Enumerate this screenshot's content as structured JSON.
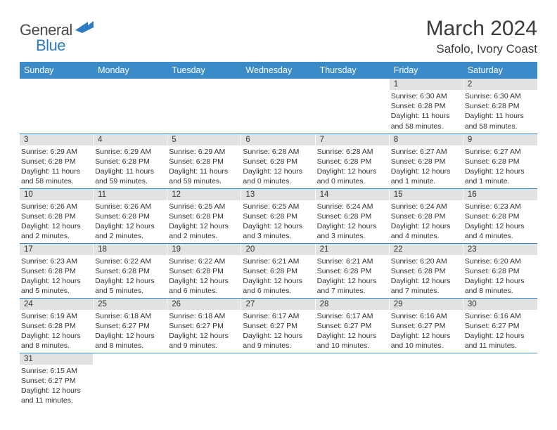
{
  "logo": {
    "general": "General",
    "blue": "Blue"
  },
  "title": "March 2024",
  "location": "Safolo, Ivory Coast",
  "colors": {
    "header_bg": "#3b8bc9",
    "header_fg": "#ffffff",
    "daynum_bg": "#e2e2e2",
    "row_border": "#3b8bc9",
    "logo_blue": "#2d7cc4",
    "logo_gray": "#4a4a4a"
  },
  "weekdays": [
    "Sunday",
    "Monday",
    "Tuesday",
    "Wednesday",
    "Thursday",
    "Friday",
    "Saturday"
  ],
  "font": {
    "body_family": "Arial",
    "th_size": 12.5,
    "daynum_size": 11.5,
    "info_size": 10.5,
    "title_size": 30,
    "location_size": 17
  },
  "weeks": [
    [
      {
        "day": "",
        "sunrise": "",
        "sunset": "",
        "daylight": ""
      },
      {
        "day": "",
        "sunrise": "",
        "sunset": "",
        "daylight": ""
      },
      {
        "day": "",
        "sunrise": "",
        "sunset": "",
        "daylight": ""
      },
      {
        "day": "",
        "sunrise": "",
        "sunset": "",
        "daylight": ""
      },
      {
        "day": "",
        "sunrise": "",
        "sunset": "",
        "daylight": ""
      },
      {
        "day": "1",
        "sunrise": "Sunrise: 6:30 AM",
        "sunset": "Sunset: 6:28 PM",
        "daylight": "Daylight: 11 hours and 58 minutes."
      },
      {
        "day": "2",
        "sunrise": "Sunrise: 6:30 AM",
        "sunset": "Sunset: 6:28 PM",
        "daylight": "Daylight: 11 hours and 58 minutes."
      }
    ],
    [
      {
        "day": "3",
        "sunrise": "Sunrise: 6:29 AM",
        "sunset": "Sunset: 6:28 PM",
        "daylight": "Daylight: 11 hours and 58 minutes."
      },
      {
        "day": "4",
        "sunrise": "Sunrise: 6:29 AM",
        "sunset": "Sunset: 6:28 PM",
        "daylight": "Daylight: 11 hours and 59 minutes."
      },
      {
        "day": "5",
        "sunrise": "Sunrise: 6:29 AM",
        "sunset": "Sunset: 6:28 PM",
        "daylight": "Daylight: 11 hours and 59 minutes."
      },
      {
        "day": "6",
        "sunrise": "Sunrise: 6:28 AM",
        "sunset": "Sunset: 6:28 PM",
        "daylight": "Daylight: 12 hours and 0 minutes."
      },
      {
        "day": "7",
        "sunrise": "Sunrise: 6:28 AM",
        "sunset": "Sunset: 6:28 PM",
        "daylight": "Daylight: 12 hours and 0 minutes."
      },
      {
        "day": "8",
        "sunrise": "Sunrise: 6:27 AM",
        "sunset": "Sunset: 6:28 PM",
        "daylight": "Daylight: 12 hours and 1 minute."
      },
      {
        "day": "9",
        "sunrise": "Sunrise: 6:27 AM",
        "sunset": "Sunset: 6:28 PM",
        "daylight": "Daylight: 12 hours and 1 minute."
      }
    ],
    [
      {
        "day": "10",
        "sunrise": "Sunrise: 6:26 AM",
        "sunset": "Sunset: 6:28 PM",
        "daylight": "Daylight: 12 hours and 2 minutes."
      },
      {
        "day": "11",
        "sunrise": "Sunrise: 6:26 AM",
        "sunset": "Sunset: 6:28 PM",
        "daylight": "Daylight: 12 hours and 2 minutes."
      },
      {
        "day": "12",
        "sunrise": "Sunrise: 6:25 AM",
        "sunset": "Sunset: 6:28 PM",
        "daylight": "Daylight: 12 hours and 2 minutes."
      },
      {
        "day": "13",
        "sunrise": "Sunrise: 6:25 AM",
        "sunset": "Sunset: 6:28 PM",
        "daylight": "Daylight: 12 hours and 3 minutes."
      },
      {
        "day": "14",
        "sunrise": "Sunrise: 6:24 AM",
        "sunset": "Sunset: 6:28 PM",
        "daylight": "Daylight: 12 hours and 3 minutes."
      },
      {
        "day": "15",
        "sunrise": "Sunrise: 6:24 AM",
        "sunset": "Sunset: 6:28 PM",
        "daylight": "Daylight: 12 hours and 4 minutes."
      },
      {
        "day": "16",
        "sunrise": "Sunrise: 6:23 AM",
        "sunset": "Sunset: 6:28 PM",
        "daylight": "Daylight: 12 hours and 4 minutes."
      }
    ],
    [
      {
        "day": "17",
        "sunrise": "Sunrise: 6:23 AM",
        "sunset": "Sunset: 6:28 PM",
        "daylight": "Daylight: 12 hours and 5 minutes."
      },
      {
        "day": "18",
        "sunrise": "Sunrise: 6:22 AM",
        "sunset": "Sunset: 6:28 PM",
        "daylight": "Daylight: 12 hours and 5 minutes."
      },
      {
        "day": "19",
        "sunrise": "Sunrise: 6:22 AM",
        "sunset": "Sunset: 6:28 PM",
        "daylight": "Daylight: 12 hours and 6 minutes."
      },
      {
        "day": "20",
        "sunrise": "Sunrise: 6:21 AM",
        "sunset": "Sunset: 6:28 PM",
        "daylight": "Daylight: 12 hours and 6 minutes."
      },
      {
        "day": "21",
        "sunrise": "Sunrise: 6:21 AM",
        "sunset": "Sunset: 6:28 PM",
        "daylight": "Daylight: 12 hours and 7 minutes."
      },
      {
        "day": "22",
        "sunrise": "Sunrise: 6:20 AM",
        "sunset": "Sunset: 6:28 PM",
        "daylight": "Daylight: 12 hours and 7 minutes."
      },
      {
        "day": "23",
        "sunrise": "Sunrise: 6:20 AM",
        "sunset": "Sunset: 6:28 PM",
        "daylight": "Daylight: 12 hours and 8 minutes."
      }
    ],
    [
      {
        "day": "24",
        "sunrise": "Sunrise: 6:19 AM",
        "sunset": "Sunset: 6:28 PM",
        "daylight": "Daylight: 12 hours and 8 minutes."
      },
      {
        "day": "25",
        "sunrise": "Sunrise: 6:18 AM",
        "sunset": "Sunset: 6:27 PM",
        "daylight": "Daylight: 12 hours and 8 minutes."
      },
      {
        "day": "26",
        "sunrise": "Sunrise: 6:18 AM",
        "sunset": "Sunset: 6:27 PM",
        "daylight": "Daylight: 12 hours and 9 minutes."
      },
      {
        "day": "27",
        "sunrise": "Sunrise: 6:17 AM",
        "sunset": "Sunset: 6:27 PM",
        "daylight": "Daylight: 12 hours and 9 minutes."
      },
      {
        "day": "28",
        "sunrise": "Sunrise: 6:17 AM",
        "sunset": "Sunset: 6:27 PM",
        "daylight": "Daylight: 12 hours and 10 minutes."
      },
      {
        "day": "29",
        "sunrise": "Sunrise: 6:16 AM",
        "sunset": "Sunset: 6:27 PM",
        "daylight": "Daylight: 12 hours and 10 minutes."
      },
      {
        "day": "30",
        "sunrise": "Sunrise: 6:16 AM",
        "sunset": "Sunset: 6:27 PM",
        "daylight": "Daylight: 12 hours and 11 minutes."
      }
    ],
    [
      {
        "day": "31",
        "sunrise": "Sunrise: 6:15 AM",
        "sunset": "Sunset: 6:27 PM",
        "daylight": "Daylight: 12 hours and 11 minutes."
      },
      {
        "day": "",
        "sunrise": "",
        "sunset": "",
        "daylight": ""
      },
      {
        "day": "",
        "sunrise": "",
        "sunset": "",
        "daylight": ""
      },
      {
        "day": "",
        "sunrise": "",
        "sunset": "",
        "daylight": ""
      },
      {
        "day": "",
        "sunrise": "",
        "sunset": "",
        "daylight": ""
      },
      {
        "day": "",
        "sunrise": "",
        "sunset": "",
        "daylight": ""
      },
      {
        "day": "",
        "sunrise": "",
        "sunset": "",
        "daylight": ""
      }
    ]
  ]
}
